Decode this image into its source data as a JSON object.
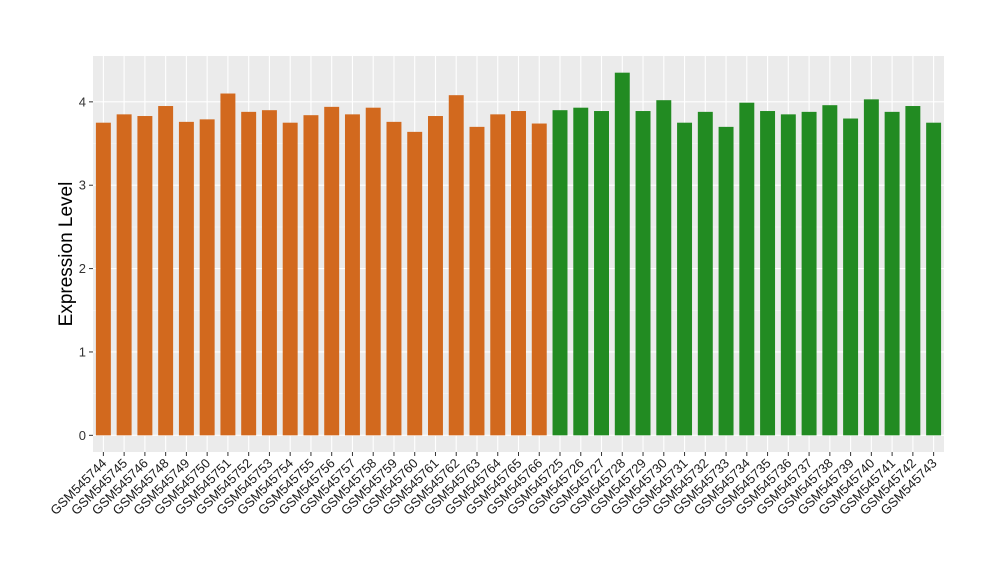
{
  "chart_data": {
    "type": "bar",
    "title": "",
    "xlabel": "",
    "ylabel": "Expression Level",
    "ylim": [
      -0.2,
      4.55
    ],
    "yticks": [
      0,
      1,
      2,
      3,
      4
    ],
    "grid": true,
    "panel_background": "#EBEBEB",
    "group_colors": {
      "group1": "#D2691E",
      "group2": "#228B22"
    },
    "categories": [
      "GSM545744",
      "GSM545745",
      "GSM545746",
      "GSM545748",
      "GSM545749",
      "GSM545750",
      "GSM545751",
      "GSM545752",
      "GSM545753",
      "GSM545754",
      "GSM545755",
      "GSM545756",
      "GSM545757",
      "GSM545758",
      "GSM545759",
      "GSM545760",
      "GSM545761",
      "GSM545762",
      "GSM545763",
      "GSM545764",
      "GSM545765",
      "GSM545766",
      "GSM545725",
      "GSM545726",
      "GSM545727",
      "GSM545728",
      "GSM545729",
      "GSM545730",
      "GSM545731",
      "GSM545732",
      "GSM545733",
      "GSM545734",
      "GSM545735",
      "GSM545736",
      "GSM545737",
      "GSM545738",
      "GSM545739",
      "GSM545740",
      "GSM545741",
      "GSM545742",
      "GSM545743"
    ],
    "values": [
      3.75,
      3.85,
      3.83,
      3.95,
      3.76,
      3.79,
      4.1,
      3.88,
      3.9,
      3.75,
      3.84,
      3.94,
      3.85,
      3.93,
      3.76,
      3.64,
      3.83,
      4.08,
      3.7,
      3.85,
      3.89,
      3.74,
      3.9,
      3.93,
      3.89,
      4.35,
      3.89,
      4.02,
      3.75,
      3.88,
      3.7,
      3.99,
      3.89,
      3.85,
      3.88,
      3.96,
      3.8,
      4.03,
      3.88,
      3.95,
      3.75
    ],
    "groups": [
      "group1",
      "group1",
      "group1",
      "group1",
      "group1",
      "group1",
      "group1",
      "group1",
      "group1",
      "group1",
      "group1",
      "group1",
      "group1",
      "group1",
      "group1",
      "group1",
      "group1",
      "group1",
      "group1",
      "group1",
      "group1",
      "group1",
      "group2",
      "group2",
      "group2",
      "group2",
      "group2",
      "group2",
      "group2",
      "group2",
      "group2",
      "group2",
      "group2",
      "group2",
      "group2",
      "group2",
      "group2",
      "group2",
      "group2",
      "group2",
      "group2"
    ]
  }
}
